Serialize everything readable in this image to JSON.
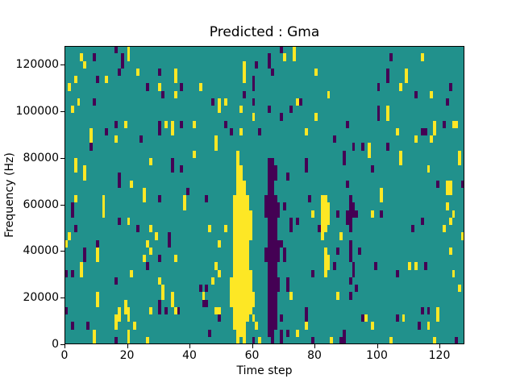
{
  "chart_data": {
    "type": "heatmap",
    "title": "Predicted : Gma",
    "xlabel": "Time step",
    "ylabel": "Frequency (Hz)",
    "xlim": [
      0,
      128
    ],
    "ylim": [
      0,
      128000
    ],
    "x_ticks": [
      0,
      20,
      40,
      60,
      80,
      100,
      120
    ],
    "y_ticks": [
      0,
      20000,
      40000,
      60000,
      80000,
      100000,
      120000
    ],
    "grid": {
      "cols": 128,
      "rows": 40
    },
    "colormap": "viridis-3-level",
    "colors": {
      "background_mid": "#21918c",
      "low_purple": "#440154",
      "high_yellow": "#fde725",
      "frame": "#000000",
      "figure_bg": "#ffffff"
    },
    "cells": {
      "run_format": "[col, row_bottom, row_top] zero-indexed from bottom-left",
      "yellow_runs": [
        [
          20,
          39,
          39
        ],
        [
          5,
          38,
          38
        ],
        [
          20,
          38,
          38
        ],
        [
          6,
          37,
          37
        ],
        [
          23,
          36,
          36
        ],
        [
          35,
          35,
          36
        ],
        [
          3,
          35,
          35
        ],
        [
          13,
          35,
          35
        ],
        [
          1,
          34,
          34
        ],
        [
          30,
          34,
          34
        ],
        [
          35,
          33,
          33
        ],
        [
          4,
          32,
          32
        ],
        [
          2,
          31,
          31
        ],
        [
          19,
          29,
          29
        ],
        [
          32,
          29,
          29
        ],
        [
          34,
          28,
          29
        ],
        [
          41,
          29,
          29
        ],
        [
          8,
          27,
          28
        ],
        [
          16,
          27,
          27
        ],
        [
          41,
          25,
          25
        ],
        [
          3,
          23,
          24
        ],
        [
          27,
          24,
          24
        ],
        [
          6,
          22,
          23
        ],
        [
          21,
          21,
          21
        ],
        [
          25,
          20,
          20
        ],
        [
          0,
          13,
          13
        ],
        [
          3,
          19,
          19
        ],
        [
          12,
          17,
          19
        ],
        [
          25,
          19,
          19
        ],
        [
          38,
          18,
          19
        ],
        [
          20,
          16,
          16
        ],
        [
          27,
          15,
          15
        ],
        [
          1,
          14,
          14
        ],
        [
          29,
          14,
          14
        ],
        [
          26,
          13,
          13
        ],
        [
          10,
          11,
          12
        ],
        [
          25,
          11,
          11
        ],
        [
          27,
          12,
          12
        ],
        [
          35,
          11,
          11
        ],
        [
          5,
          9,
          10
        ],
        [
          21,
          9,
          9
        ],
        [
          30,
          8,
          8
        ],
        [
          31,
          6,
          7
        ],
        [
          10,
          5,
          6
        ],
        [
          34,
          5,
          6
        ],
        [
          19,
          4,
          5
        ],
        [
          27,
          4,
          4
        ],
        [
          35,
          4,
          4
        ],
        [
          17,
          3,
          4
        ],
        [
          20,
          3,
          4
        ],
        [
          16,
          2,
          3
        ],
        [
          22,
          2,
          2
        ],
        [
          9,
          0,
          1
        ],
        [
          20,
          0,
          1
        ],
        [
          26,
          0,
          0
        ],
        [
          73,
          38,
          39
        ],
        [
          70,
          38,
          38
        ],
        [
          57,
          35,
          37
        ],
        [
          80,
          36,
          36
        ],
        [
          43,
          34,
          34
        ],
        [
          84,
          33,
          33
        ],
        [
          49,
          31,
          32
        ],
        [
          51,
          32,
          32
        ],
        [
          74,
          32,
          32
        ],
        [
          56,
          31,
          31
        ],
        [
          60,
          30,
          30
        ],
        [
          80,
          30,
          30
        ],
        [
          56,
          28,
          28
        ],
        [
          77,
          28,
          28
        ],
        [
          48,
          26,
          27
        ],
        [
          79,
          17,
          17
        ],
        [
          46,
          15,
          15
        ],
        [
          51,
          15,
          15
        ],
        [
          49,
          13,
          13
        ],
        [
          48,
          10,
          10
        ],
        [
          49,
          9,
          9
        ],
        [
          47,
          8,
          8
        ],
        [
          44,
          6,
          6
        ],
        [
          48,
          4,
          4
        ],
        [
          49,
          4,
          4
        ],
        [
          60,
          3,
          3
        ],
        [
          61,
          2,
          2
        ],
        [
          62,
          0,
          0
        ],
        [
          72,
          6,
          6
        ],
        [
          74,
          1,
          1
        ],
        [
          77,
          2,
          2
        ],
        [
          85,
          0,
          0
        ],
        [
          53,
          5,
          8
        ],
        [
          54,
          2,
          19
        ],
        [
          55,
          0,
          25
        ],
        [
          56,
          1,
          23
        ],
        [
          57,
          0,
          21
        ],
        [
          58,
          3,
          19
        ],
        [
          59,
          4,
          9
        ],
        [
          59,
          14,
          17
        ],
        [
          60,
          5,
          6
        ],
        [
          82,
          14,
          19
        ],
        [
          83,
          15,
          19
        ],
        [
          83,
          9,
          12
        ],
        [
          84,
          16,
          18
        ],
        [
          84,
          10,
          11
        ],
        [
          114,
          38,
          38
        ],
        [
          109,
          35,
          36
        ],
        [
          107,
          34,
          34
        ],
        [
          117,
          33,
          33
        ],
        [
          103,
          30,
          31
        ],
        [
          124,
          29,
          29
        ],
        [
          125,
          29,
          29
        ],
        [
          118,
          28,
          29
        ],
        [
          106,
          28,
          28
        ],
        [
          112,
          27,
          27
        ],
        [
          117,
          27,
          27
        ],
        [
          97,
          25,
          26
        ],
        [
          107,
          24,
          25
        ],
        [
          126,
          24,
          25
        ],
        [
          116,
          23,
          23
        ],
        [
          101,
          20,
          20
        ],
        [
          122,
          20,
          21
        ],
        [
          123,
          20,
          21
        ],
        [
          101,
          19,
          19
        ],
        [
          122,
          18,
          18
        ],
        [
          98,
          17,
          17
        ],
        [
          124,
          17,
          17
        ],
        [
          123,
          16,
          16
        ],
        [
          121,
          15,
          15
        ],
        [
          88,
          14,
          14
        ],
        [
          127,
          14,
          14
        ],
        [
          123,
          12,
          12
        ],
        [
          110,
          10,
          10
        ],
        [
          112,
          10,
          10
        ],
        [
          124,
          9,
          9
        ],
        [
          126,
          7,
          7
        ],
        [
          87,
          6,
          6
        ],
        [
          119,
          3,
          4
        ],
        [
          96,
          3,
          3
        ],
        [
          108,
          3,
          3
        ],
        [
          98,
          2,
          2
        ],
        [
          116,
          2,
          2
        ],
        [
          104,
          0,
          0
        ],
        [
          118,
          0,
          0
        ]
      ],
      "purple_runs": [
        [
          16,
          39,
          39
        ],
        [
          9,
          38,
          38
        ],
        [
          18,
          37,
          38
        ],
        [
          17,
          36,
          36
        ],
        [
          30,
          36,
          36
        ],
        [
          10,
          35,
          35
        ],
        [
          26,
          34,
          34
        ],
        [
          37,
          34,
          34
        ],
        [
          31,
          33,
          33
        ],
        [
          9,
          32,
          32
        ],
        [
          16,
          29,
          29
        ],
        [
          30,
          28,
          29
        ],
        [
          37,
          29,
          29
        ],
        [
          13,
          28,
          28
        ],
        [
          24,
          27,
          27
        ],
        [
          8,
          26,
          26
        ],
        [
          34,
          23,
          24
        ],
        [
          37,
          23,
          23
        ],
        [
          17,
          21,
          22
        ],
        [
          39,
          20,
          20
        ],
        [
          30,
          19,
          19
        ],
        [
          2,
          17,
          18
        ],
        [
          17,
          16,
          16
        ],
        [
          3,
          15,
          15
        ],
        [
          23,
          15,
          15
        ],
        [
          33,
          13,
          14
        ],
        [
          10,
          13,
          13
        ],
        [
          6,
          11,
          12
        ],
        [
          30,
          11,
          11
        ],
        [
          26,
          10,
          10
        ],
        [
          2,
          9,
          9
        ],
        [
          0,
          9,
          9
        ],
        [
          16,
          8,
          8
        ],
        [
          30,
          4,
          5
        ],
        [
          32,
          4,
          4
        ],
        [
          36,
          4,
          4
        ],
        [
          2,
          2,
          2
        ],
        [
          7,
          2,
          2
        ],
        [
          16,
          0,
          0
        ],
        [
          0,
          4,
          4
        ],
        [
          69,
          39,
          39
        ],
        [
          65,
          37,
          38
        ],
        [
          61,
          37,
          37
        ],
        [
          66,
          36,
          36
        ],
        [
          60,
          34,
          35
        ],
        [
          57,
          33,
          33
        ],
        [
          47,
          32,
          32
        ],
        [
          60,
          32,
          32
        ],
        [
          75,
          32,
          32
        ],
        [
          65,
          31,
          31
        ],
        [
          72,
          31,
          31
        ],
        [
          69,
          30,
          30
        ],
        [
          51,
          29,
          29
        ],
        [
          53,
          28,
          28
        ],
        [
          62,
          28,
          28
        ],
        [
          71,
          22,
          22
        ],
        [
          45,
          19,
          19
        ],
        [
          43,
          7,
          7
        ],
        [
          45,
          7,
          7
        ],
        [
          44,
          5,
          5
        ],
        [
          45,
          5,
          5
        ],
        [
          46,
          1,
          1
        ],
        [
          49,
          3,
          3
        ],
        [
          60,
          0,
          0
        ],
        [
          64,
          17,
          19
        ],
        [
          64,
          11,
          12
        ],
        [
          65,
          1,
          24
        ],
        [
          66,
          0,
          24
        ],
        [
          67,
          2,
          19
        ],
        [
          67,
          22,
          23
        ],
        [
          68,
          17,
          18
        ],
        [
          68,
          11,
          13
        ],
        [
          68,
          7,
          8
        ],
        [
          69,
          13,
          13
        ],
        [
          69,
          3,
          3
        ],
        [
          69,
          0,
          1
        ],
        [
          70,
          18,
          18
        ],
        [
          70,
          11,
          12
        ],
        [
          71,
          7,
          8
        ],
        [
          71,
          1,
          1
        ],
        [
          72,
          15,
          16
        ],
        [
          74,
          16,
          16
        ],
        [
          77,
          23,
          24
        ],
        [
          77,
          3,
          4
        ],
        [
          78,
          19,
          19
        ],
        [
          79,
          9,
          9
        ],
        [
          79,
          0,
          0
        ],
        [
          81,
          15,
          15
        ],
        [
          88,
          0,
          0
        ],
        [
          104,
          38,
          38
        ],
        [
          103,
          35,
          36
        ],
        [
          100,
          34,
          34
        ],
        [
          123,
          34,
          34
        ],
        [
          112,
          33,
          33
        ],
        [
          122,
          32,
          32
        ],
        [
          100,
          30,
          31
        ],
        [
          90,
          29,
          29
        ],
        [
          121,
          29,
          29
        ],
        [
          114,
          28,
          28
        ],
        [
          115,
          28,
          28
        ],
        [
          86,
          27,
          27
        ],
        [
          92,
          26,
          26
        ],
        [
          95,
          26,
          26
        ],
        [
          103,
          26,
          26
        ],
        [
          89,
          24,
          25
        ],
        [
          98,
          23,
          23
        ],
        [
          90,
          21,
          21
        ],
        [
          119,
          21,
          21
        ],
        [
          127,
          21,
          21
        ],
        [
          91,
          15,
          19
        ],
        [
          92,
          17,
          18
        ],
        [
          90,
          16,
          17
        ],
        [
          93,
          17,
          17
        ],
        [
          87,
          17,
          17
        ],
        [
          101,
          17,
          17
        ],
        [
          111,
          15,
          15
        ],
        [
          114,
          16,
          16
        ],
        [
          87,
          12,
          12
        ],
        [
          91,
          11,
          13
        ],
        [
          94,
          12,
          12
        ],
        [
          86,
          10,
          10
        ],
        [
          92,
          9,
          10
        ],
        [
          99,
          10,
          10
        ],
        [
          106,
          9,
          9
        ],
        [
          115,
          10,
          10
        ],
        [
          91,
          8,
          8
        ],
        [
          93,
          7,
          7
        ],
        [
          91,
          6,
          6
        ],
        [
          95,
          3,
          3
        ],
        [
          106,
          3,
          3
        ],
        [
          113,
          2,
          2
        ],
        [
          114,
          4,
          4
        ],
        [
          116,
          4,
          4
        ],
        [
          89,
          0,
          1
        ],
        [
          125,
          0,
          0
        ]
      ]
    },
    "layout": {
      "legend": "none",
      "grid_lines": "off"
    }
  }
}
